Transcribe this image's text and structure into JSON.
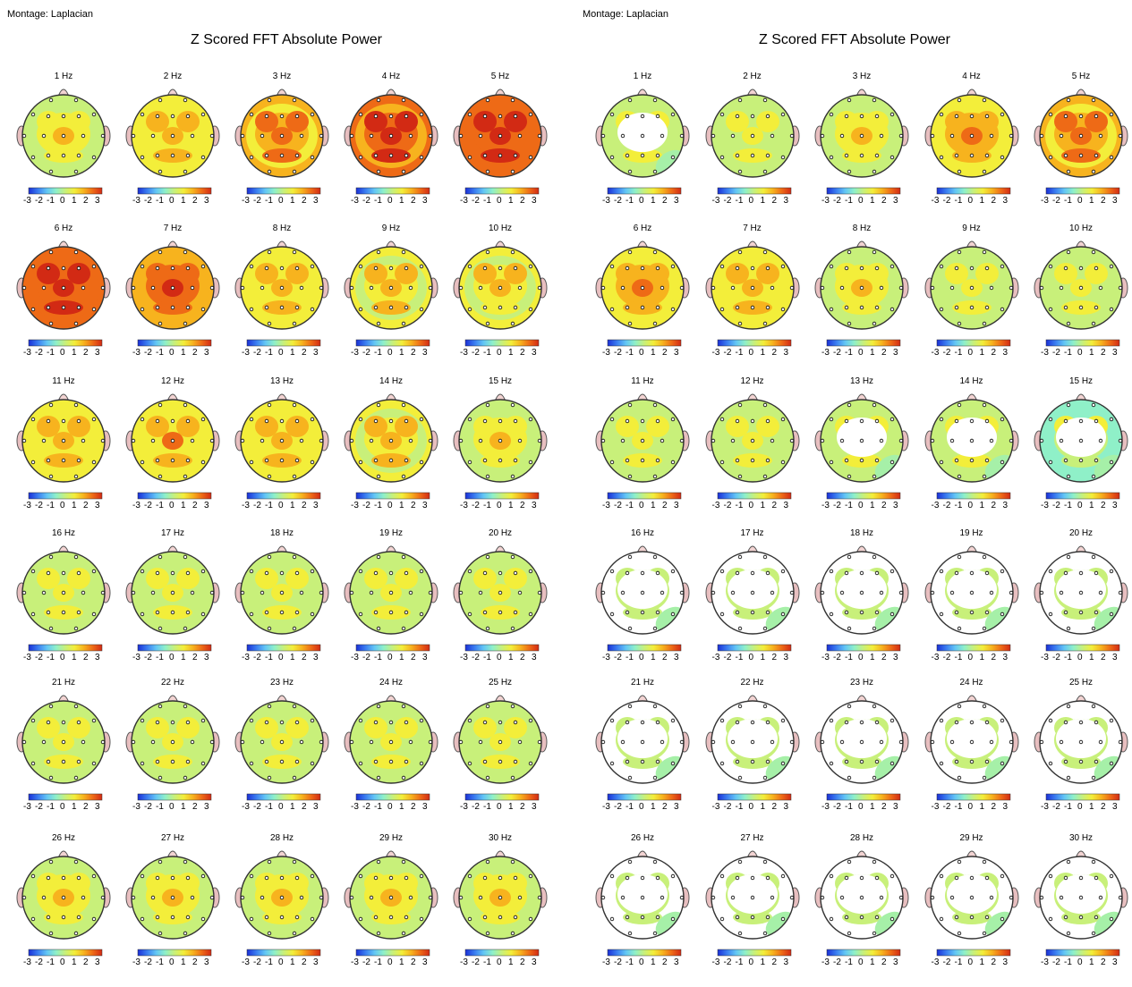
{
  "panels": [
    {
      "montage_text": "Montage:  Laplacian",
      "title": "Z Scored FFT Absolute Power",
      "maps": [
        {
          "label": "1 Hz",
          "level": 1.0
        },
        {
          "label": "2 Hz",
          "level": 1.4
        },
        {
          "label": "3 Hz",
          "level": 2.1
        },
        {
          "label": "4 Hz",
          "level": 2.8
        },
        {
          "label": "5 Hz",
          "level": 2.9
        },
        {
          "label": "6 Hz",
          "level": 2.9
        },
        {
          "label": "7 Hz",
          "level": 2.6
        },
        {
          "label": "8 Hz",
          "level": 1.5
        },
        {
          "label": "9 Hz",
          "level": 1.3
        },
        {
          "label": "10 Hz",
          "level": 1.2
        },
        {
          "label": "11 Hz",
          "level": 1.5
        },
        {
          "label": "12 Hz",
          "level": 1.6
        },
        {
          "label": "13 Hz",
          "level": 1.4
        },
        {
          "label": "14 Hz",
          "level": 1.3
        },
        {
          "label": "15 Hz",
          "level": 1.1
        },
        {
          "label": "16 Hz",
          "level": 0.8
        },
        {
          "label": "17 Hz",
          "level": 0.8
        },
        {
          "label": "18 Hz",
          "level": 0.7
        },
        {
          "label": "19 Hz",
          "level": 0.7
        },
        {
          "label": "20 Hz",
          "level": 0.7
        },
        {
          "label": "21 Hz",
          "level": 0.7
        },
        {
          "label": "22 Hz",
          "level": 0.7
        },
        {
          "label": "23 Hz",
          "level": 0.8
        },
        {
          "label": "24 Hz",
          "level": 0.8
        },
        {
          "label": "25 Hz",
          "level": 0.8
        },
        {
          "label": "26 Hz",
          "level": 0.9
        },
        {
          "label": "27 Hz",
          "level": 0.9
        },
        {
          "label": "28 Hz",
          "level": 0.9
        },
        {
          "label": "29 Hz",
          "level": 0.9
        },
        {
          "label": "30 Hz",
          "level": 0.9
        }
      ]
    },
    {
      "montage_text": "Montage:  Laplacian",
      "title": "Z Scored FFT Absolute Power",
      "maps": [
        {
          "label": "1 Hz",
          "level": 0.5
        },
        {
          "label": "2 Hz",
          "level": 0.6
        },
        {
          "label": "3 Hz",
          "level": 1.0
        },
        {
          "label": "4 Hz",
          "level": 1.7
        },
        {
          "label": "5 Hz",
          "level": 2.0
        },
        {
          "label": "6 Hz",
          "level": 1.8
        },
        {
          "label": "7 Hz",
          "level": 1.4
        },
        {
          "label": "8 Hz",
          "level": 1.1
        },
        {
          "label": "9 Hz",
          "level": 0.8
        },
        {
          "label": "10 Hz",
          "level": 0.7
        },
        {
          "label": "11 Hz",
          "level": 0.6
        },
        {
          "label": "12 Hz",
          "level": 0.6
        },
        {
          "label": "13 Hz",
          "level": 0.5
        },
        {
          "label": "14 Hz",
          "level": 0.5
        },
        {
          "label": "15 Hz",
          "level": 0.4
        },
        {
          "label": "16 Hz",
          "level": 0.3
        },
        {
          "label": "17 Hz",
          "level": 0.3
        },
        {
          "label": "18 Hz",
          "level": 0.2
        },
        {
          "label": "19 Hz",
          "level": 0.2
        },
        {
          "label": "20 Hz",
          "level": 0.2
        },
        {
          "label": "21 Hz",
          "level": 0.2
        },
        {
          "label": "22 Hz",
          "level": 0.2
        },
        {
          "label": "23 Hz",
          "level": 0.2
        },
        {
          "label": "24 Hz",
          "level": 0.2
        },
        {
          "label": "25 Hz",
          "level": 0.2
        },
        {
          "label": "26 Hz",
          "level": 0.2
        },
        {
          "label": "27 Hz",
          "level": 0.2
        },
        {
          "label": "28 Hz",
          "level": 0.2
        },
        {
          "label": "29 Hz",
          "level": 0.2
        },
        {
          "label": "30 Hz",
          "level": 0.2
        }
      ]
    }
  ],
  "colorbar": {
    "ticks": [
      "-3",
      "-2",
      "-1",
      "0",
      "1",
      "2",
      "3"
    ],
    "colors": [
      "#1a2fd6",
      "#3a7cf0",
      "#63c6f5",
      "#8ff0c8",
      "#c8f07a",
      "#f3ee3a",
      "#f7b31e",
      "#ee6a16",
      "#d22a14"
    ]
  },
  "head_colors": {
    "outline": "#333333",
    "ears": "#e8bfc0",
    "nose": "#f2d3d2",
    "electrode": "#ffffff"
  }
}
